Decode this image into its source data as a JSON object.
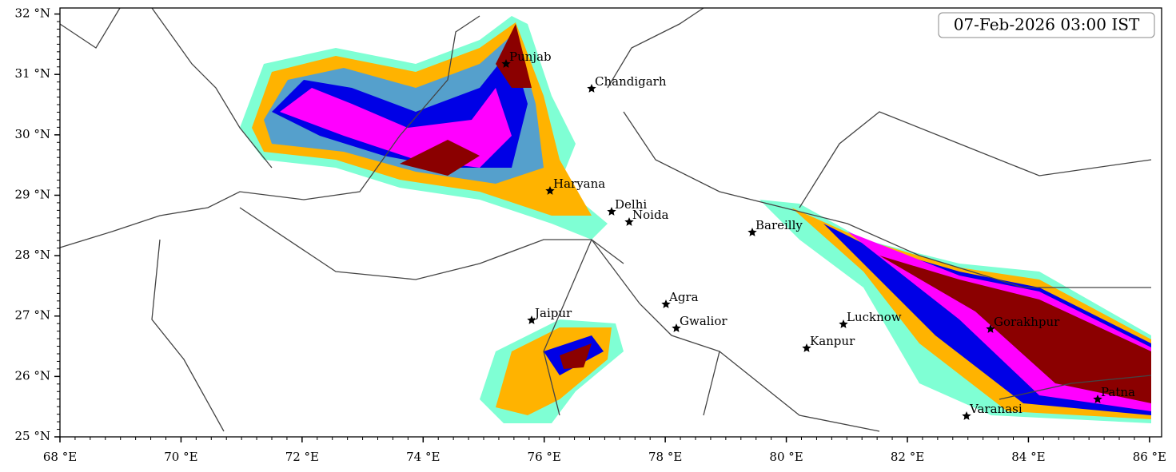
{
  "map": {
    "timestamp": "07-Feb-2026 03:00 IST",
    "xlim": [
      68,
      86.2
    ],
    "ylim": [
      25,
      32.1
    ],
    "xticks": [
      {
        "value": 68,
        "label": "68 °E"
      },
      {
        "value": 70,
        "label": "70 °E"
      },
      {
        "value": 72,
        "label": "72 °E"
      },
      {
        "value": 74,
        "label": "74 °E"
      },
      {
        "value": 76,
        "label": "76 °E"
      },
      {
        "value": 78,
        "label": "78 °E"
      },
      {
        "value": 80,
        "label": "80 °E"
      },
      {
        "value": 82,
        "label": "82 °E"
      },
      {
        "value": 84,
        "label": "84 °E"
      },
      {
        "value": 86,
        "label": "86 °E"
      }
    ],
    "yticks": [
      {
        "value": 25,
        "label": "25 °N"
      },
      {
        "value": 26,
        "label": "26 °N"
      },
      {
        "value": 27,
        "label": "27 °N"
      },
      {
        "value": 28,
        "label": "28 °N"
      },
      {
        "value": 29,
        "label": "29 °N"
      },
      {
        "value": 30,
        "label": "30 °N"
      },
      {
        "value": 31,
        "label": "31 °N"
      },
      {
        "value": 32,
        "label": "32 °N"
      }
    ],
    "cities": [
      "Punjab",
      "Chandigarh",
      "Haryana",
      "Delhi",
      "Noida",
      "Bareilly",
      "Agra",
      "Jaipur",
      "Gwalior",
      "Lucknow",
      "Kanpur",
      "Gorakhpur",
      "Varanasi",
      "Patna"
    ]
  }
}
